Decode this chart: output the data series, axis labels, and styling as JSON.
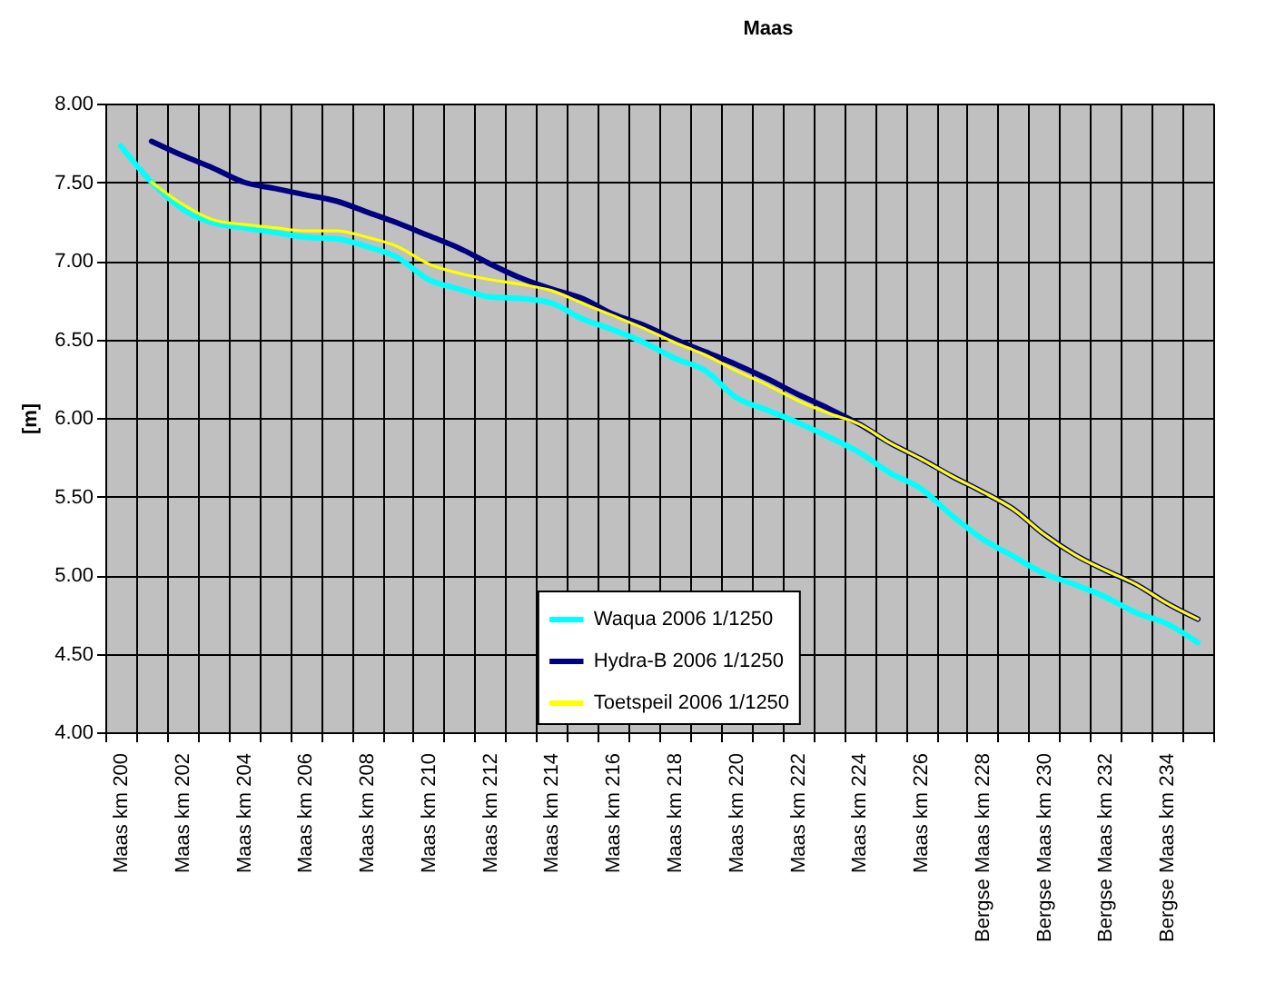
{
  "chart_data": {
    "type": "line",
    "title": "Maas",
    "ylabel": "[m]",
    "categories": [
      "Maas km 200",
      null,
      "Maas km 202",
      null,
      "Maas km 204",
      null,
      "Maas km 206",
      null,
      "Maas km 208",
      null,
      "Maas km 210",
      null,
      "Maas km 212",
      null,
      "Maas km 214",
      null,
      "Maas km 216",
      null,
      "Maas km 218",
      null,
      "Maas km 220",
      null,
      "Maas km 222",
      null,
      "Maas km 224",
      null,
      "Maas km 226",
      null,
      "Bergse Maas km 228",
      null,
      "Bergse Maas km 230",
      null,
      "Bergse Maas km 232",
      null,
      "Bergse Maas km 234",
      null
    ],
    "series": [
      {
        "name": "Waqua 2006 1/1250",
        "color": "#00ffff",
        "values": [
          7.73,
          7.5,
          7.33,
          7.24,
          7.21,
          7.18,
          7.15,
          7.14,
          7.09,
          7.02,
          6.88,
          6.82,
          6.77,
          6.76,
          6.73,
          6.63,
          6.56,
          6.48,
          6.38,
          6.3,
          6.13,
          6.05,
          5.97,
          5.88,
          5.78,
          5.65,
          5.55,
          5.38,
          5.23,
          5.12,
          5.01,
          4.94,
          4.86,
          4.76,
          4.69,
          4.57
        ]
      },
      {
        "name": "Hydra-B 2006 1/1250",
        "color": "#000080",
        "values": [
          null,
          7.76,
          7.67,
          7.59,
          7.5,
          7.46,
          7.42,
          7.38,
          7.31,
          7.24,
          7.16,
          7.08,
          6.98,
          6.89,
          6.82,
          6.76,
          6.66,
          6.59,
          6.5,
          6.42,
          6.34,
          6.25,
          6.15,
          6.06,
          5.96,
          5.84,
          5.74,
          5.63,
          5.53,
          5.42,
          5.26,
          5.13,
          5.03,
          4.94,
          4.82,
          4.72
        ]
      },
      {
        "name": "Toetspeil 2006 1/1250",
        "color": "#ffff00",
        "values": [
          null,
          7.5,
          7.36,
          7.26,
          7.23,
          7.21,
          7.19,
          7.19,
          7.15,
          7.09,
          6.98,
          6.92,
          6.88,
          6.85,
          6.81,
          6.73,
          6.65,
          6.57,
          6.48,
          6.4,
          6.3,
          6.21,
          6.11,
          6.03,
          5.96,
          5.84,
          5.74,
          5.63,
          5.53,
          5.42,
          5.26,
          5.13,
          5.03,
          4.94,
          4.82,
          4.72
        ]
      }
    ],
    "ylim": [
      4,
      8
    ],
    "yticks": [
      {
        "value": 4,
        "label": "4.00"
      },
      {
        "value": 4.5,
        "label": "4.50"
      },
      {
        "value": 5,
        "label": "5.00"
      },
      {
        "value": 5.5,
        "label": "5.50"
      },
      {
        "value": 6,
        "label": "6.00"
      },
      {
        "value": 6.5,
        "label": "6.50"
      },
      {
        "value": 7,
        "label": "7.00"
      },
      {
        "value": 7.5,
        "label": "7.50"
      },
      {
        "value": 8,
        "label": "8.00"
      }
    ],
    "grid": true,
    "legend": "bottom",
    "marker": "none",
    "line_style": "solid"
  }
}
